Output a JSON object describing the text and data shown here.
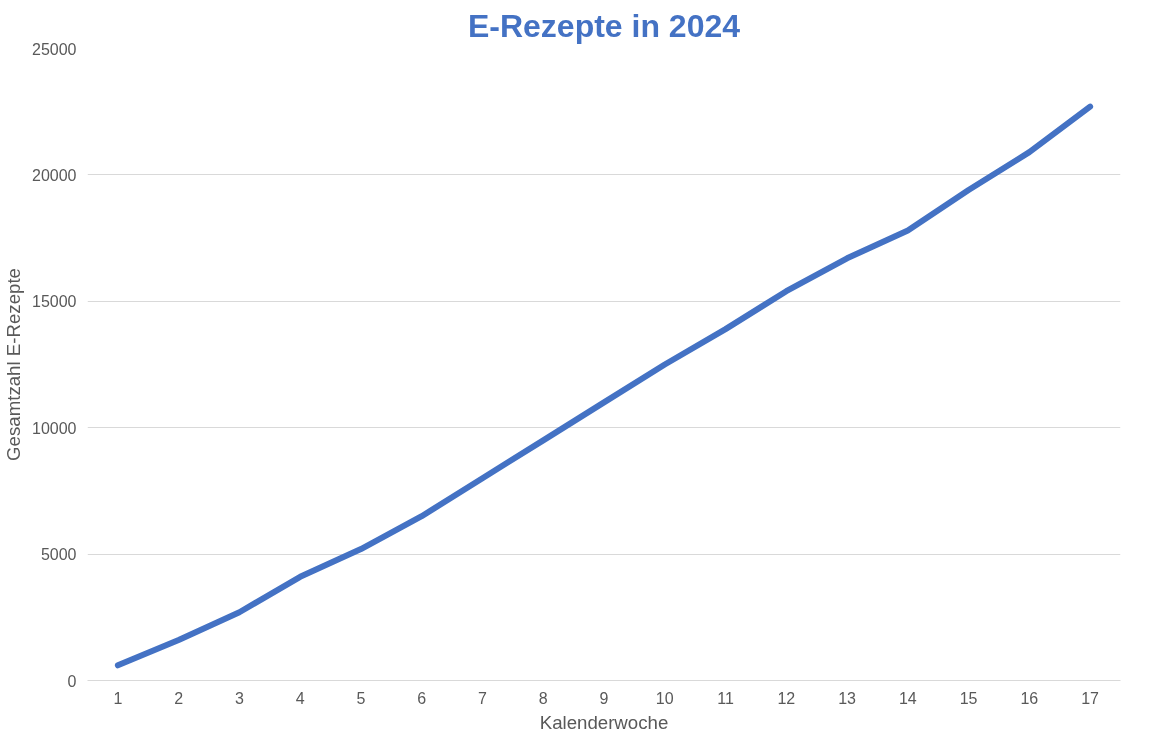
{
  "chart_data": {
    "type": "line",
    "title": "E-Rezepte in 2024",
    "xlabel": "Kalenderwoche",
    "ylabel": "Gesamtzahl E-Rezepte",
    "x": [
      1,
      2,
      3,
      4,
      5,
      6,
      7,
      8,
      9,
      10,
      11,
      12,
      13,
      14,
      15,
      16,
      17
    ],
    "series": [
      {
        "color": "#4472c4",
        "values": [
          600,
          1600,
          2700,
          4100,
          5200,
          6500,
          8000,
          9500,
          11000,
          12500,
          13900,
          15400,
          16700,
          17800,
          19400,
          20900,
          22700
        ]
      }
    ],
    "xlim": [
      0.5,
      17.5
    ],
    "xticks": [
      1,
      2,
      3,
      4,
      5,
      6,
      7,
      8,
      9,
      10,
      11,
      12,
      13,
      14,
      15,
      16,
      17
    ],
    "ylim": [
      0,
      25000
    ],
    "yticks": [
      0,
      5000,
      10000,
      15000,
      20000,
      25000
    ],
    "grid": "y",
    "marker": "none",
    "line_style": "solid"
  }
}
